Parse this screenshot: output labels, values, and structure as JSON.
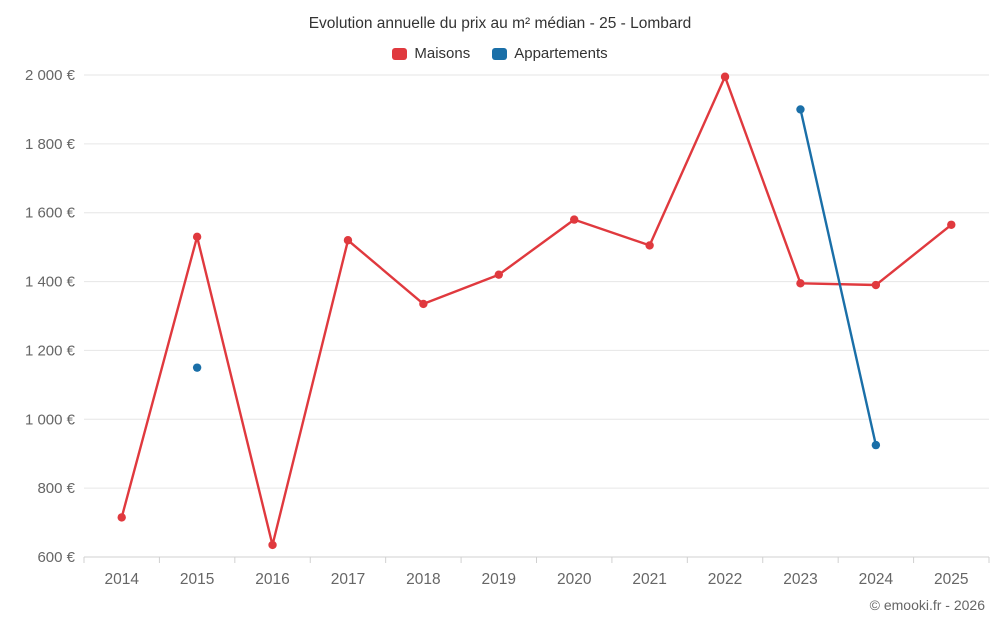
{
  "footer": {
    "credit": "© emooki.fr - 2026"
  },
  "chart_data": {
    "type": "line",
    "title": "Evolution annuelle du prix au m² médian - 25 - Lombard",
    "xlabel": "",
    "ylabel": "",
    "categories": [
      "2014",
      "2015",
      "2016",
      "2017",
      "2018",
      "2019",
      "2020",
      "2021",
      "2022",
      "2023",
      "2024",
      "2025"
    ],
    "series": [
      {
        "name": "Maisons",
        "color": "#e0393e",
        "values": [
          715,
          1530,
          635,
          1520,
          1335,
          1420,
          1580,
          1505,
          1995,
          1395,
          1390,
          1565
        ]
      },
      {
        "name": "Appartements",
        "color": "#1a6fa8",
        "values": [
          null,
          1150,
          null,
          null,
          null,
          null,
          null,
          null,
          null,
          1900,
          925,
          null
        ]
      }
    ],
    "ylim": [
      600,
      2000
    ],
    "yticks": [
      {
        "value": 600,
        "label": "600 €"
      },
      {
        "value": 800,
        "label": "800 €"
      },
      {
        "value": 1000,
        "label": "1 000 €"
      },
      {
        "value": 1200,
        "label": "1 200 €"
      },
      {
        "value": 1400,
        "label": "1 400 €"
      },
      {
        "value": 1600,
        "label": "1 600 €"
      },
      {
        "value": 1800,
        "label": "1 800 €"
      },
      {
        "value": 2000,
        "label": "2 000 €"
      }
    ],
    "grid": true,
    "legend_position": "top",
    "grid_color": "#e6e6e6",
    "axis_label_color": "#666666",
    "axis_line_color": "#d0d0d0"
  }
}
